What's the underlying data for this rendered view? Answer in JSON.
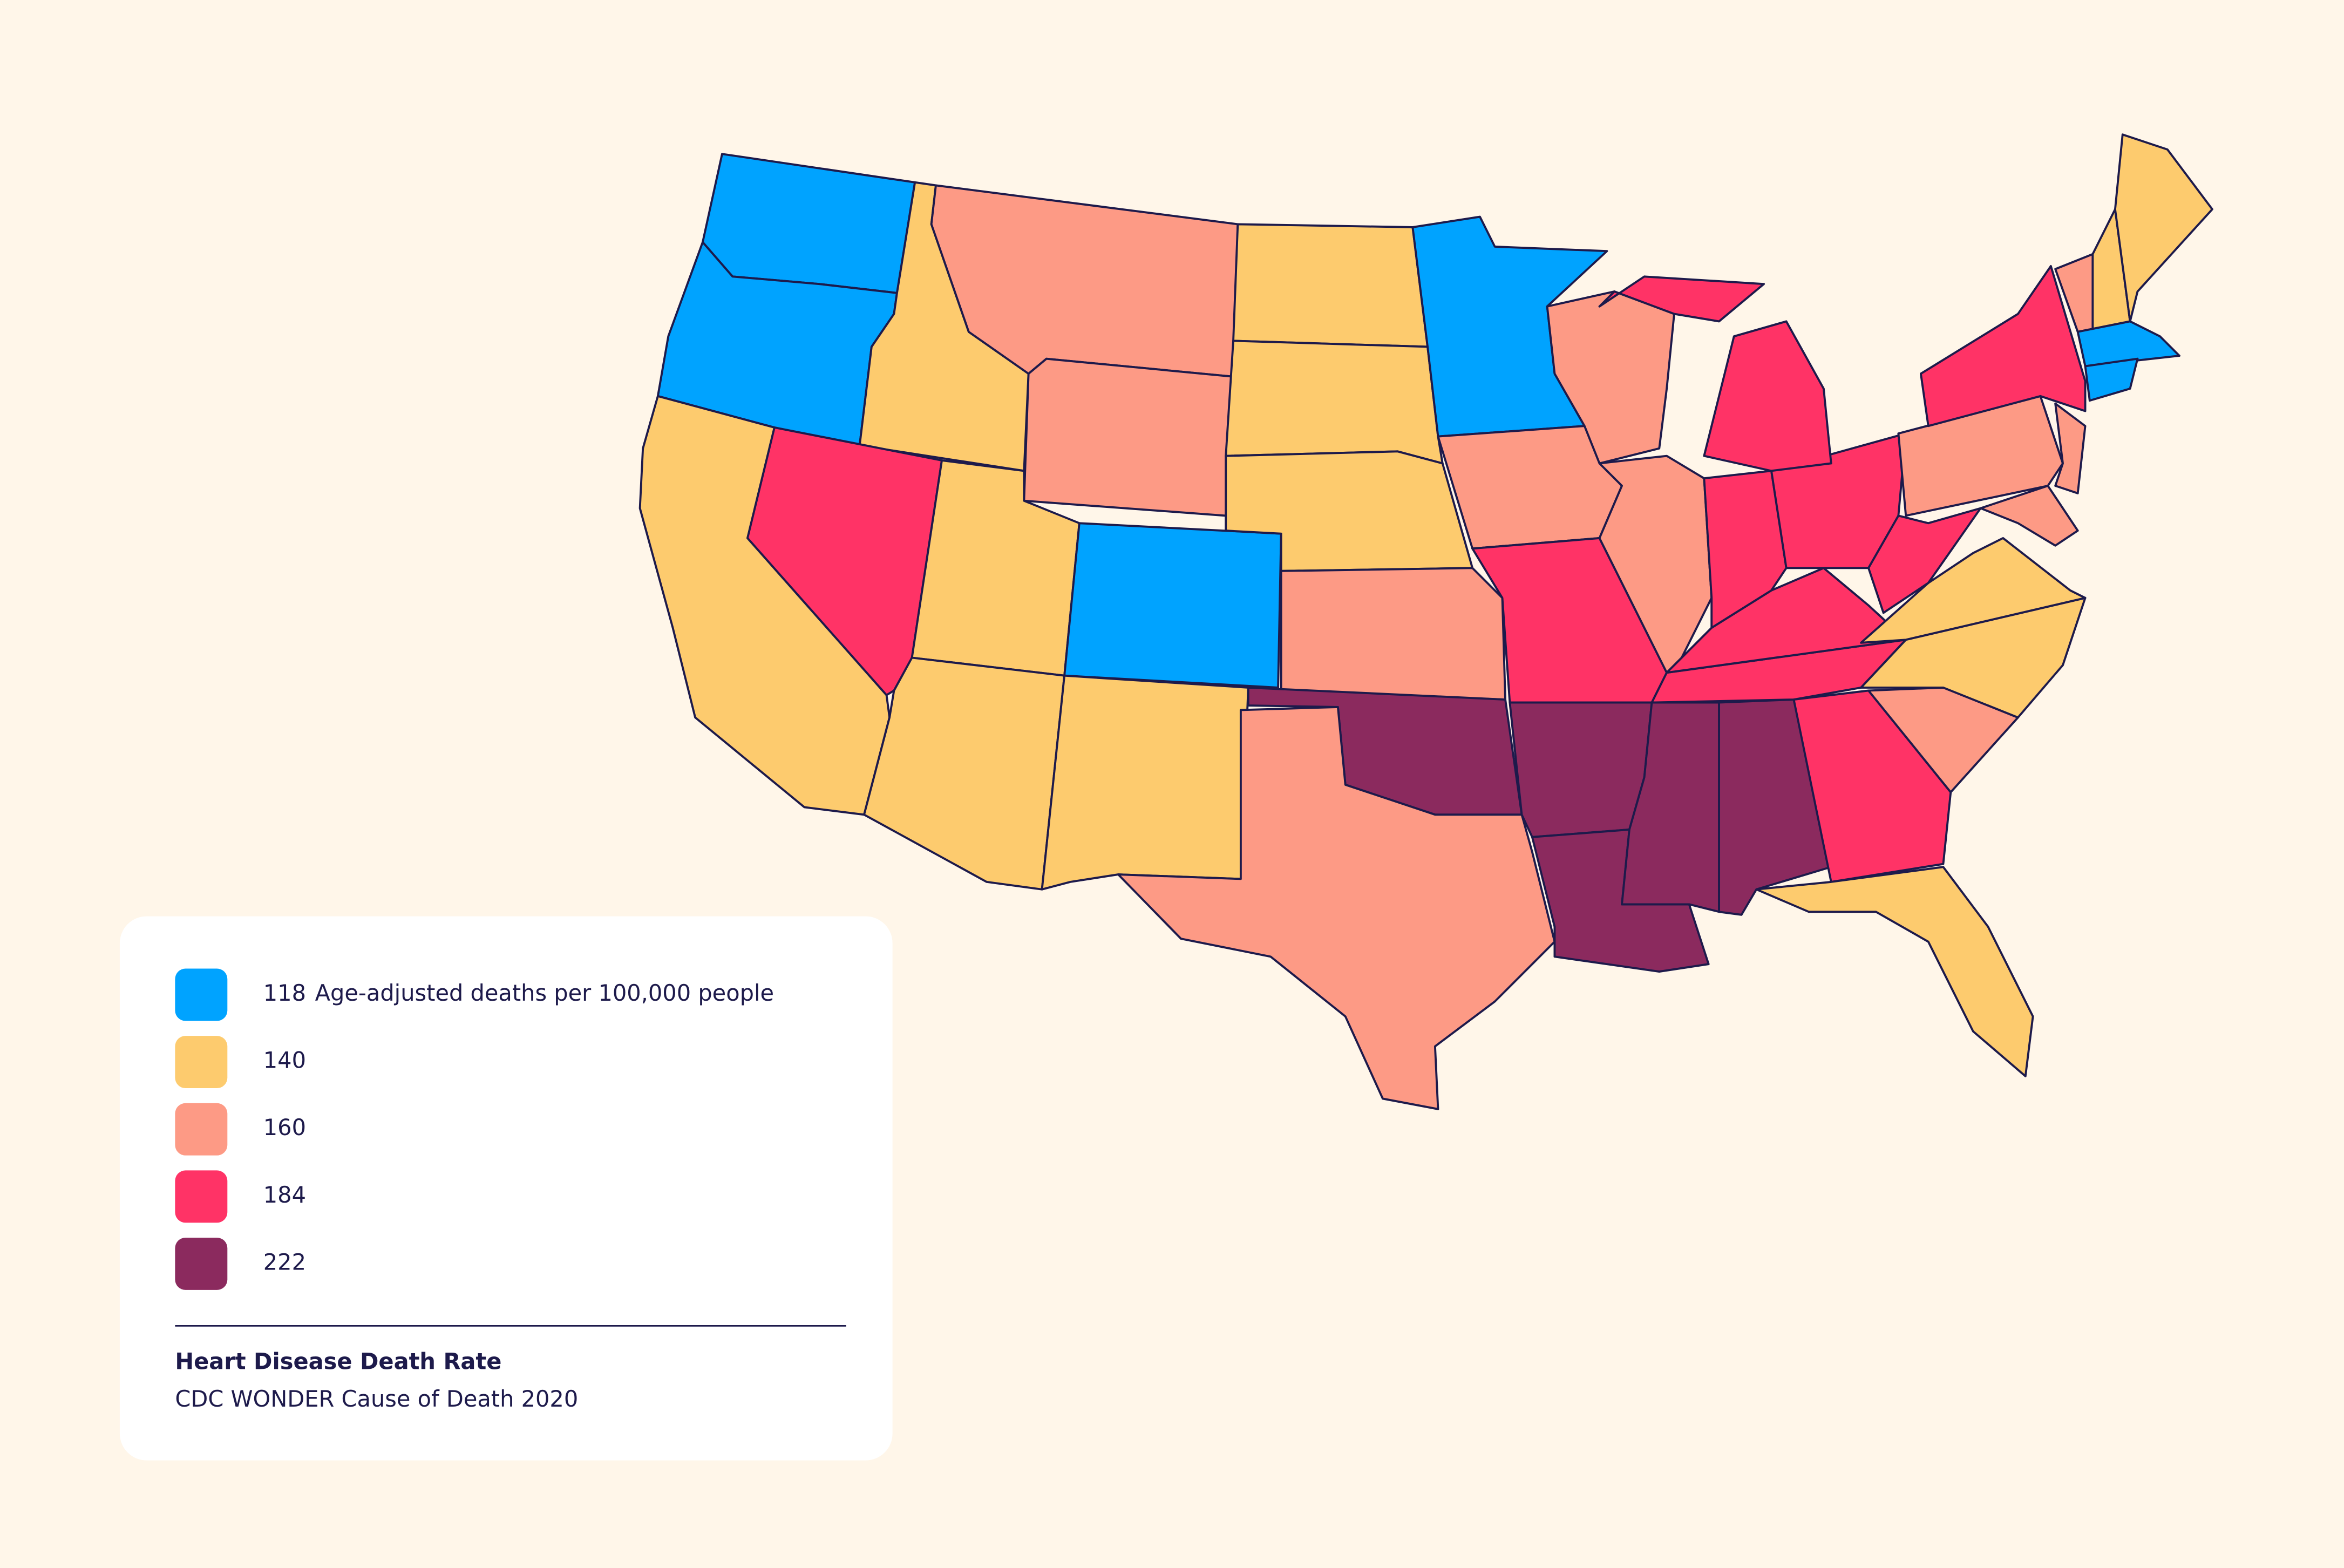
{
  "legend": {
    "values": [
      118,
      140,
      160,
      184,
      222
    ],
    "colors": [
      "#00a3ff",
      "#fdcb6e",
      "#fd9a85",
      "#ff3366",
      "#8b2a5e"
    ],
    "unit": "Age-adjusted deaths per 100,000 people"
  },
  "title": "Heart Disease Death Rate",
  "source": "CDC WONDER Cause of Death 2020",
  "regions": [
    118,
    118,
    140,
    140,
    184,
    160,
    160,
    140,
    140,
    118,
    140,
    140,
    140,
    140,
    160,
    222,
    160,
    118,
    160,
    184,
    222,
    222,
    160,
    160,
    222,
    222,
    184,
    184,
    184,
    184,
    184,
    184,
    184,
    140,
    160,
    140,
    140,
    184,
    160,
    184,
    160,
    160,
    160,
    140,
    140,
    118,
    118
  ]
}
